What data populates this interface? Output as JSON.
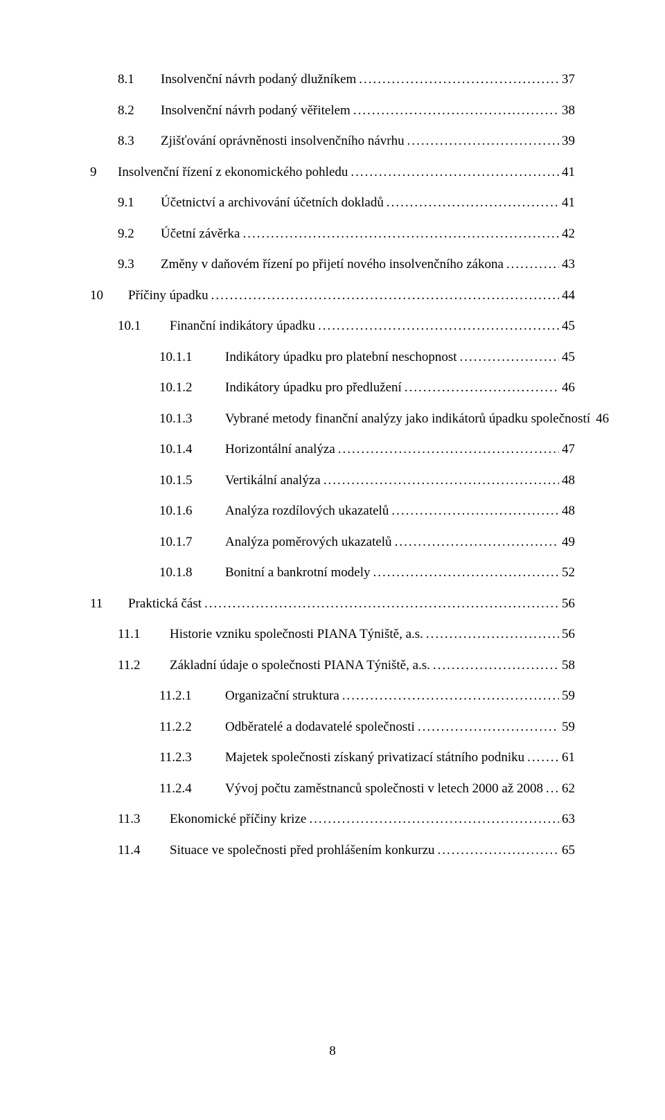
{
  "page_number": "8",
  "toc": [
    {
      "lvl": "lvl-2",
      "num": "8.1",
      "title": "Insolvenční návrh podaný dlužníkem",
      "page": "37"
    },
    {
      "lvl": "lvl-2",
      "num": "8.2",
      "title": "Insolvenční návrh podaný věřitelem",
      "page": "38"
    },
    {
      "lvl": "lvl-2",
      "num": "8.3",
      "title": "Zjišťování oprávněnosti insolvenčního návrhu",
      "page": "39"
    },
    {
      "lvl": "lvl-1",
      "num": "9",
      "title": "Insolvenční řízení z ekonomického pohledu",
      "page": "41"
    },
    {
      "lvl": "lvl-2",
      "num": "9.1",
      "title": "Účetnictví a archivování účetních dokladů",
      "page": "41"
    },
    {
      "lvl": "lvl-2",
      "num": "9.2",
      "title": "Účetní závěrka",
      "page": "42"
    },
    {
      "lvl": "lvl-2",
      "num": "9.3",
      "title": "Změny v daňovém řízení po přijetí nového insolvenčního zákona",
      "page": "43"
    },
    {
      "lvl": "lvl-1b",
      "num": "10",
      "title": "Příčiny úpadku",
      "page": "44"
    },
    {
      "lvl": "lvl-2b",
      "num": "10.1",
      "title": "Finanční indikátory úpadku",
      "page": "45"
    },
    {
      "lvl": "lvl-3",
      "num": "10.1.1",
      "title": "Indikátory úpadku pro platební neschopnost",
      "page": "45"
    },
    {
      "lvl": "lvl-3",
      "num": "10.1.2",
      "title": "Indikátory úpadku pro předlužení",
      "page": "46"
    },
    {
      "lvl": "lvl-3",
      "num": "10.1.3",
      "title": "Vybrané metody finanční analýzy jako indikátorů úpadku společností",
      "page": "46"
    },
    {
      "lvl": "lvl-3",
      "num": "10.1.4",
      "title": "Horizontální analýza",
      "page": "47"
    },
    {
      "lvl": "lvl-3",
      "num": "10.1.5",
      "title": "Vertikální analýza",
      "page": "48"
    },
    {
      "lvl": "lvl-3",
      "num": "10.1.6",
      "title": "Analýza rozdílových ukazatelů",
      "page": "48"
    },
    {
      "lvl": "lvl-3",
      "num": "10.1.7",
      "title": "Analýza poměrových ukazatelů",
      "page": "49"
    },
    {
      "lvl": "lvl-3",
      "num": "10.1.8",
      "title": "Bonitní a bankrotní modely",
      "page": "52"
    },
    {
      "lvl": "lvl-1b",
      "num": "11",
      "title": "Praktická část",
      "page": "56"
    },
    {
      "lvl": "lvl-2b",
      "num": "11.1",
      "title": "Historie vzniku společnosti PIANA Týniště, a.s.",
      "page": "56"
    },
    {
      "lvl": "lvl-2b",
      "num": "11.2",
      "title": "Základní údaje o společnosti PIANA Týniště, a.s.",
      "page": "58"
    },
    {
      "lvl": "lvl-3",
      "num": "11.2.1",
      "title": "Organizační struktura",
      "page": "59"
    },
    {
      "lvl": "lvl-3",
      "num": "11.2.2",
      "title": "Odběratelé a dodavatelé společnosti",
      "page": "59"
    },
    {
      "lvl": "lvl-3",
      "num": "11.2.3",
      "title": "Majetek společnosti získaný privatizací státního podniku",
      "page": "61"
    },
    {
      "lvl": "lvl-3",
      "num": "11.2.4",
      "title": "Vývoj počtu zaměstnanců společnosti v letech 2000 až 2008",
      "page": "62"
    },
    {
      "lvl": "lvl-2b",
      "num": "11.3",
      "title": "Ekonomické příčiny krize",
      "page": "63"
    },
    {
      "lvl": "lvl-2b",
      "num": "11.4",
      "title": "Situace ve společnosti před prohlášením konkurzu",
      "page": "65"
    }
  ]
}
